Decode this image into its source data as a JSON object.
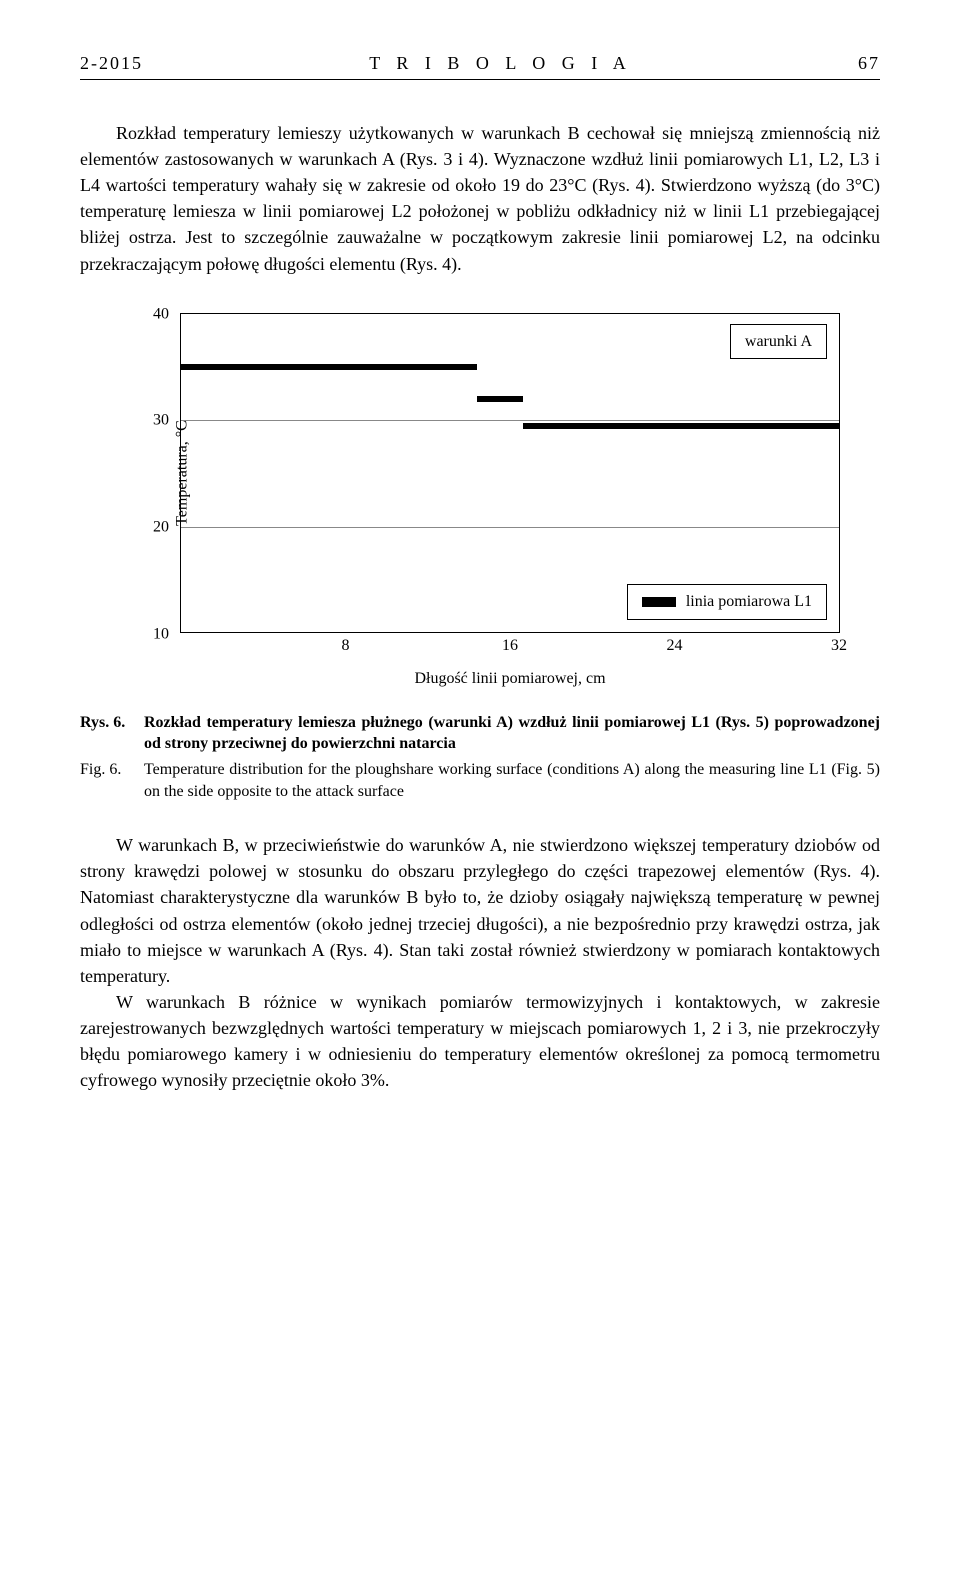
{
  "header": {
    "issue": "2-2015",
    "journal": "T R I B O L O G I A",
    "page": "67"
  },
  "para1": "Rozkład temperatury lemieszy użytkowanych w warunkach B cechował się mniejszą zmiennością niż elementów zastosowanych w warunkach A (Rys. 3 i 4). Wyznaczone wzdłuż linii pomiarowych L1, L2, L3 i L4 wartości temperatury wahały się w zakresie od około 19 do 23°C (Rys. 4). Stwierdzono wyższą (do 3°C) temperaturę lemiesza w linii pomiarowej L2 położonej w pobliżu odkładnicy niż w linii L1 przebiegającej bliżej ostrza. Jest to szczególnie zauważalne w początkowym zakresie linii pomiarowej L2, na odcinku przekraczającym połowę długości elementu (Rys. 4).",
  "chart": {
    "type": "line",
    "ylabel": "Temperatura, °C",
    "xlabel": "Długość linii pomiarowej, cm",
    "ylim": [
      10,
      40
    ],
    "yticks": [
      10,
      20,
      30,
      40
    ],
    "xticks": [
      8,
      16,
      24,
      32
    ],
    "grid_color": "#888888",
    "background_color": "#ffffff",
    "line_color": "#000000",
    "line_width": 6,
    "legend_top": "warunki A",
    "legend_bottom": "linia pomiarowa L1",
    "series": {
      "name": "L1",
      "segments": [
        {
          "x0_pct": 0,
          "x1_pct": 45,
          "y_c": 35
        },
        {
          "x0_pct": 45,
          "x1_pct": 52,
          "y_c": 32
        },
        {
          "x0_pct": 52,
          "x1_pct": 100,
          "y_c": 29.5
        }
      ]
    }
  },
  "caption": {
    "rys_tag": "Rys. 6.",
    "rys_text": "Rozkład temperatury lemiesza płużnego (warunki A) wzdłuż linii pomiarowej L1 (Rys. 5) poprowadzonej od strony przeciwnej do powierzchni natarcia",
    "fig_tag": "Fig. 6.",
    "fig_text": "Temperature distribution for the ploughshare working surface (conditions A) along the measuring line L1 (Fig. 5) on the side opposite to the attack surface"
  },
  "para2": "W warunkach B, w przeciwieństwie do warunków A, nie stwierdzono większej temperatury dziobów od strony krawędzi polowej w stosunku do obszaru przyległego do części trapezowej elementów (Rys. 4). Natomiast charakterystyczne dla warunków B było to, że dzioby osiągały największą temperaturę w pewnej odległości od ostrza elementów (około jednej trzeciej długości), a nie bezpośrednio przy krawędzi ostrza, jak miało to miejsce w warunkach A (Rys. 4). Stan taki został również stwierdzony w pomiarach kontaktowych temperatury.",
  "para3": "W warunkach B różnice w wynikach pomiarów termowizyjnych i kontaktowych, w zakresie zarejestrowanych bezwzględnych wartości temperatury w miejscach pomiarowych 1, 2 i 3, nie przekroczyły błędu pomiarowego kamery i w odniesieniu do temperatury elementów określonej za pomocą termometru cyfrowego wynosiły przeciętnie około 3%."
}
